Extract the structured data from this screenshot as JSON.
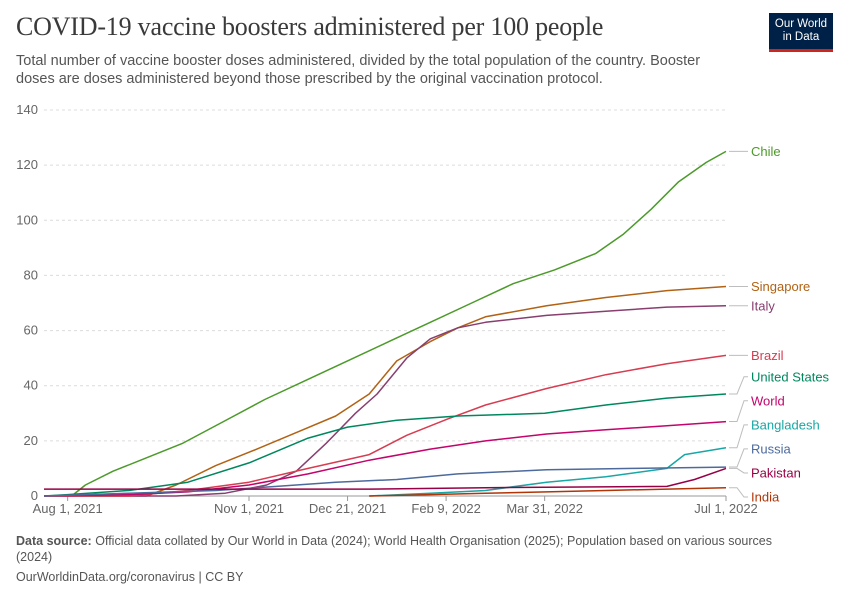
{
  "header": {
    "title": "COVID-19 vaccine boosters administered per 100 people",
    "subtitle": "Total number of vaccine booster doses administered, divided by the total population of the country. Booster doses are doses administered beyond those prescribed by the original vaccination protocol.",
    "logo_line1": "Our World",
    "logo_line2": "in Data"
  },
  "footer": {
    "source_label": "Data source:",
    "source_text": "Official data collated by Our World in Data (2024); World Health Organisation (2025); Population based on various sources (2024)",
    "link_text": "OurWorldinData.org/coronavirus | CC BY"
  },
  "colors": {
    "Chile": "#4c9a2a",
    "Singapore": "#b16214",
    "Italy": "#883e6f",
    "Brazil": "#d73c50",
    "United States": "#00875e",
    "World": "#c3046c",
    "Bangladesh": "#18a7a5",
    "Russia": "#4c6a9c",
    "Pakistan": "#970046",
    "India": "#b13507"
  },
  "chart_data": {
    "type": "line",
    "title": "COVID-19 vaccine boosters administered per 100 people",
    "xlabel": "",
    "ylabel": "",
    "x_domain": [
      "2021-07-20",
      "2022-07-01"
    ],
    "ylim": [
      0,
      140
    ],
    "y_ticks": [
      0,
      20,
      40,
      60,
      80,
      100,
      120,
      140
    ],
    "x_ticks": [
      {
        "date": "2021-08-01",
        "label": "Aug 1, 2021"
      },
      {
        "date": "2021-11-01",
        "label": "Nov 1, 2021"
      },
      {
        "date": "2021-12-21",
        "label": "Dec 21, 2021"
      },
      {
        "date": "2022-02-09",
        "label": "Feb 9, 2022"
      },
      {
        "date": "2022-03-31",
        "label": "Mar 31, 2022"
      },
      {
        "date": "2022-07-01",
        "label": "Jul 1, 2022"
      }
    ],
    "grid": true,
    "legend": "end-of-line labels (right)",
    "series": [
      {
        "name": "Chile",
        "points": [
          [
            "2021-08-03",
            0
          ],
          [
            "2021-08-10",
            4
          ],
          [
            "2021-08-24",
            9
          ],
          [
            "2021-09-07",
            13
          ],
          [
            "2021-09-28",
            19
          ],
          [
            "2021-10-19",
            27
          ],
          [
            "2021-11-09",
            35
          ],
          [
            "2021-11-30",
            42
          ],
          [
            "2021-12-21",
            49
          ],
          [
            "2022-01-11",
            56
          ],
          [
            "2022-02-01",
            63
          ],
          [
            "2022-02-22",
            70
          ],
          [
            "2022-03-15",
            77
          ],
          [
            "2022-04-05",
            82
          ],
          [
            "2022-04-26",
            88
          ],
          [
            "2022-05-10",
            95
          ],
          [
            "2022-05-24",
            104
          ],
          [
            "2022-06-07",
            114
          ],
          [
            "2022-06-21",
            121
          ],
          [
            "2022-07-01",
            125
          ]
        ]
      },
      {
        "name": "Singapore",
        "points": [
          [
            "2021-07-20",
            0
          ],
          [
            "2021-09-10",
            0
          ],
          [
            "2021-09-25",
            4
          ],
          [
            "2021-10-15",
            11
          ],
          [
            "2021-11-05",
            17
          ],
          [
            "2021-11-25",
            23
          ],
          [
            "2021-12-15",
            29
          ],
          [
            "2022-01-01",
            37
          ],
          [
            "2022-01-15",
            49
          ],
          [
            "2022-02-01",
            56
          ],
          [
            "2022-02-15",
            61
          ],
          [
            "2022-03-01",
            65
          ],
          [
            "2022-04-01",
            69
          ],
          [
            "2022-05-01",
            72
          ],
          [
            "2022-06-01",
            74.5
          ],
          [
            "2022-07-01",
            76
          ]
        ]
      },
      {
        "name": "Italy",
        "points": [
          [
            "2021-07-20",
            0
          ],
          [
            "2021-09-25",
            0
          ],
          [
            "2021-10-20",
            1
          ],
          [
            "2021-11-10",
            4
          ],
          [
            "2021-11-25",
            9
          ],
          [
            "2021-12-10",
            19
          ],
          [
            "2021-12-25",
            30
          ],
          [
            "2022-01-05",
            37
          ],
          [
            "2022-01-20",
            50
          ],
          [
            "2022-02-01",
            57
          ],
          [
            "2022-02-15",
            61
          ],
          [
            "2022-03-01",
            63
          ],
          [
            "2022-04-01",
            65.5
          ],
          [
            "2022-05-01",
            67
          ],
          [
            "2022-06-01",
            68.5
          ],
          [
            "2022-07-01",
            69
          ]
        ]
      },
      {
        "name": "Brazil",
        "points": [
          [
            "2021-07-20",
            0
          ],
          [
            "2021-09-01",
            0
          ],
          [
            "2021-10-01",
            2
          ],
          [
            "2021-11-01",
            5
          ],
          [
            "2021-12-01",
            10
          ],
          [
            "2022-01-01",
            15
          ],
          [
            "2022-01-20",
            22
          ],
          [
            "2022-02-10",
            28
          ],
          [
            "2022-03-01",
            33
          ],
          [
            "2022-04-01",
            39
          ],
          [
            "2022-05-01",
            44
          ],
          [
            "2022-06-01",
            48
          ],
          [
            "2022-07-01",
            51
          ]
        ]
      },
      {
        "name": "United States",
        "points": [
          [
            "2021-07-20",
            0
          ],
          [
            "2021-08-01",
            0.5
          ],
          [
            "2021-09-01",
            2
          ],
          [
            "2021-10-01",
            5
          ],
          [
            "2021-11-01",
            12
          ],
          [
            "2021-12-01",
            21
          ],
          [
            "2021-12-21",
            25
          ],
          [
            "2022-01-15",
            27.5
          ],
          [
            "2022-02-15",
            29
          ],
          [
            "2022-03-31",
            30
          ],
          [
            "2022-05-01",
            33
          ],
          [
            "2022-06-01",
            35.5
          ],
          [
            "2022-07-01",
            37
          ]
        ]
      },
      {
        "name": "World",
        "points": [
          [
            "2021-07-20",
            0
          ],
          [
            "2021-09-01",
            0.5
          ],
          [
            "2021-10-01",
            1.5
          ],
          [
            "2021-11-01",
            4
          ],
          [
            "2021-12-01",
            8
          ],
          [
            "2022-01-01",
            13
          ],
          [
            "2022-02-01",
            17
          ],
          [
            "2022-03-01",
            20
          ],
          [
            "2022-04-01",
            22.5
          ],
          [
            "2022-05-01",
            24
          ],
          [
            "2022-06-01",
            25.5
          ],
          [
            "2022-07-01",
            27
          ]
        ]
      },
      {
        "name": "Bangladesh",
        "points": [
          [
            "2022-01-01",
            0
          ],
          [
            "2022-02-01",
            1
          ],
          [
            "2022-03-01",
            2
          ],
          [
            "2022-04-01",
            5
          ],
          [
            "2022-05-01",
            7
          ],
          [
            "2022-06-01",
            10
          ],
          [
            "2022-06-10",
            15
          ],
          [
            "2022-07-01",
            17.5
          ]
        ]
      },
      {
        "name": "Russia",
        "points": [
          [
            "2021-07-20",
            0
          ],
          [
            "2021-09-01",
            1
          ],
          [
            "2021-10-15",
            2
          ],
          [
            "2021-11-15",
            3.5
          ],
          [
            "2021-12-15",
            5
          ],
          [
            "2022-01-15",
            6
          ],
          [
            "2022-02-15",
            8
          ],
          [
            "2022-04-01",
            9.5
          ],
          [
            "2022-05-15",
            10
          ],
          [
            "2022-07-01",
            10.5
          ]
        ]
      },
      {
        "name": "Pakistan",
        "points": [
          [
            "2021-07-20",
            2.5
          ],
          [
            "2021-11-01",
            2.5
          ],
          [
            "2022-01-01",
            2.5
          ],
          [
            "2022-03-01",
            3
          ],
          [
            "2022-06-01",
            3.5
          ],
          [
            "2022-06-15",
            6
          ],
          [
            "2022-07-01",
            10
          ]
        ]
      },
      {
        "name": "India",
        "points": [
          [
            "2022-01-01",
            0
          ],
          [
            "2022-02-01",
            0.5
          ],
          [
            "2022-03-01",
            1
          ],
          [
            "2022-04-01",
            1.5
          ],
          [
            "2022-05-01",
            2
          ],
          [
            "2022-06-01",
            2.5
          ],
          [
            "2022-07-01",
            3
          ]
        ]
      }
    ]
  }
}
